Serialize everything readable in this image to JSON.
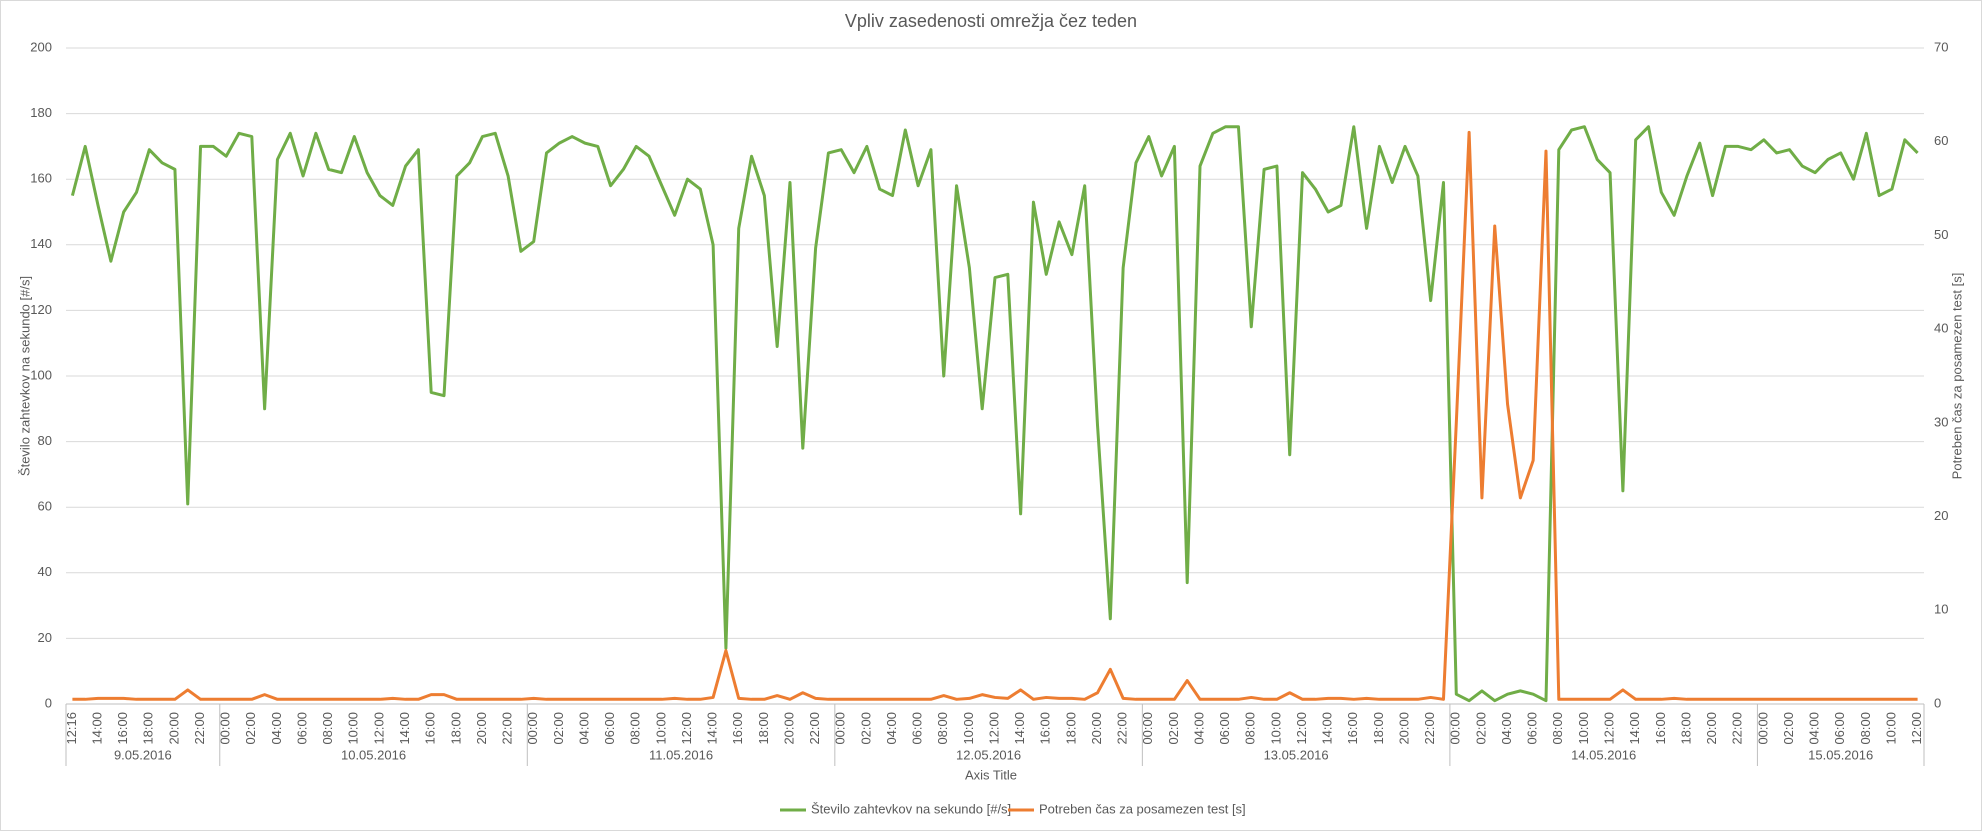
{
  "chart_data": {
    "type": "line",
    "title": "Vpliv zasedenosti omrežja čez teden",
    "x_axis_title": "Axis Title",
    "y_axis_title": "Število zahtevkov na sekundo [#/s]",
    "y2_axis_title": "Potreben čas za posamezen test [s]",
    "category_groups": [
      {
        "name": "9.05.2016",
        "categories": [
          "12:16",
          null,
          "14:00",
          null,
          "16:00",
          null,
          "18:00",
          null,
          "20:00",
          null,
          "22:00",
          null
        ]
      },
      {
        "name": "10.05.2016",
        "categories": [
          "00:00",
          null,
          "02:00",
          null,
          "04:00",
          null,
          "06:00",
          null,
          "08:00",
          null,
          "10:00",
          null,
          "12:00",
          null,
          "14:00",
          null,
          "16:00",
          null,
          "18:00",
          null,
          "20:00",
          null,
          "22:00",
          null
        ]
      },
      {
        "name": "11.05.2016",
        "categories": [
          "00:00",
          null,
          "02:00",
          null,
          "04:00",
          null,
          "06:00",
          null,
          "08:00",
          null,
          "10:00",
          null,
          "12:00",
          null,
          "14:00",
          null,
          "16:00",
          null,
          "18:00",
          null,
          "20:00",
          null,
          "22:00",
          null
        ]
      },
      {
        "name": "12.05.2016",
        "categories": [
          "00:00",
          null,
          "02:00",
          null,
          "04:00",
          null,
          "06:00",
          null,
          "08:00",
          null,
          "10:00",
          null,
          "12:00",
          null,
          "14:00",
          null,
          "16:00",
          null,
          "18:00",
          null,
          "20:00",
          null,
          "22:00",
          null
        ]
      },
      {
        "name": "13.05.2016",
        "categories": [
          "00:00",
          null,
          "02:00",
          null,
          "04:00",
          null,
          "06:00",
          null,
          "08:00",
          null,
          "10:00",
          null,
          "12:00",
          null,
          "14:00",
          null,
          "16:00",
          null,
          "18:00",
          null,
          "20:00",
          null,
          "22:00",
          null
        ]
      },
      {
        "name": "14.05.2016",
        "categories": [
          "00:00",
          null,
          "02:00",
          null,
          "04:00",
          null,
          "06:00",
          null,
          "08:00",
          null,
          "10:00",
          null,
          "12:00",
          null,
          "14:00",
          null,
          "16:00",
          null,
          "18:00",
          null,
          "20:00",
          null,
          "22:00",
          null
        ]
      },
      {
        "name": "15.05.2016",
        "categories": [
          "00:00",
          null,
          "02:00",
          null,
          "04:00",
          null,
          "06:00",
          null,
          "08:00",
          null,
          "10:00",
          null,
          "12:00"
        ]
      }
    ],
    "series": [
      {
        "name": "Število zahtevkov na sekundo [#/s]",
        "color": "#70ad47",
        "values": [
          155,
          170,
          152,
          135,
          150,
          156,
          169,
          165,
          163,
          61,
          170,
          170,
          167,
          174,
          173,
          90,
          166,
          174,
          161,
          174,
          163,
          162,
          173,
          162,
          155,
          152,
          164,
          169,
          95,
          94,
          161,
          165,
          173,
          174,
          161,
          138,
          141,
          168,
          171,
          173,
          171,
          170,
          158,
          163,
          170,
          167,
          158,
          149,
          160,
          157,
          140,
          17,
          145,
          167,
          155,
          109,
          159,
          78,
          139,
          168,
          169,
          162,
          170,
          157,
          155,
          175,
          158,
          169,
          100,
          158,
          133,
          90,
          130,
          131,
          58,
          153,
          131,
          147,
          137,
          158,
          85,
          26,
          133,
          165,
          173,
          161,
          170,
          37,
          164,
          174,
          176,
          176,
          115,
          163,
          164,
          76,
          162,
          157,
          150,
          152,
          176,
          145,
          170,
          159,
          170,
          161,
          123,
          159,
          3,
          1,
          4,
          1,
          3,
          4,
          3,
          1,
          169,
          175,
          176,
          166,
          162,
          65,
          172,
          176,
          156,
          149,
          161,
          171,
          155,
          170,
          170,
          169,
          172,
          168,
          169,
          164,
          162,
          166,
          168,
          160,
          174,
          155,
          157,
          172,
          168
        ]
      },
      {
        "name": "Potreben čas za posamezen test [s]",
        "color": "#ed7d31",
        "axis": "y2",
        "values": [
          0.5,
          0.5,
          0.6,
          0.6,
          0.6,
          0.5,
          0.5,
          0.5,
          0.5,
          1.5,
          0.5,
          0.5,
          0.5,
          0.5,
          0.5,
          1,
          0.5,
          0.5,
          0.5,
          0.5,
          0.5,
          0.5,
          0.5,
          0.5,
          0.5,
          0.6,
          0.5,
          0.5,
          1,
          1,
          0.5,
          0.5,
          0.5,
          0.5,
          0.5,
          0.5,
          0.6,
          0.5,
          0.5,
          0.5,
          0.5,
          0.5,
          0.5,
          0.5,
          0.5,
          0.5,
          0.5,
          0.6,
          0.5,
          0.5,
          0.7,
          5.7,
          0.6,
          0.5,
          0.5,
          0.9,
          0.5,
          1.2,
          0.6,
          0.5,
          0.5,
          0.5,
          0.5,
          0.5,
          0.5,
          0.5,
          0.5,
          0.5,
          0.9,
          0.5,
          0.6,
          1,
          0.7,
          0.6,
          1.5,
          0.5,
          0.7,
          0.6,
          0.6,
          0.5,
          1.2,
          3.7,
          0.6,
          0.5,
          0.5,
          0.5,
          0.5,
          2.5,
          0.5,
          0.5,
          0.5,
          0.5,
          0.7,
          0.5,
          0.5,
          1.2,
          0.5,
          0.5,
          0.6,
          0.6,
          0.5,
          0.6,
          0.5,
          0.5,
          0.5,
          0.5,
          0.7,
          0.5,
          30,
          61,
          22,
          51,
          32,
          22,
          26,
          59,
          0.5,
          0.5,
          0.5,
          0.5,
          0.5,
          1.5,
          0.5,
          0.5,
          0.5,
          0.6,
          0.5,
          0.5,
          0.5,
          0.5,
          0.5,
          0.5,
          0.5,
          0.5,
          0.5,
          0.5,
          0.5,
          0.5,
          0.5,
          0.5,
          0.5,
          0.5,
          0.5,
          0.5,
          0.5
        ]
      }
    ],
    "ylim": [
      0,
      200
    ],
    "yticks": [
      0,
      20,
      40,
      60,
      80,
      100,
      120,
      140,
      160,
      180,
      200
    ],
    "y2lim": [
      0,
      70
    ],
    "y2ticks": [
      0,
      10,
      20,
      30,
      40,
      50,
      60,
      70
    ],
    "grid": true,
    "legend": "bottom"
  }
}
